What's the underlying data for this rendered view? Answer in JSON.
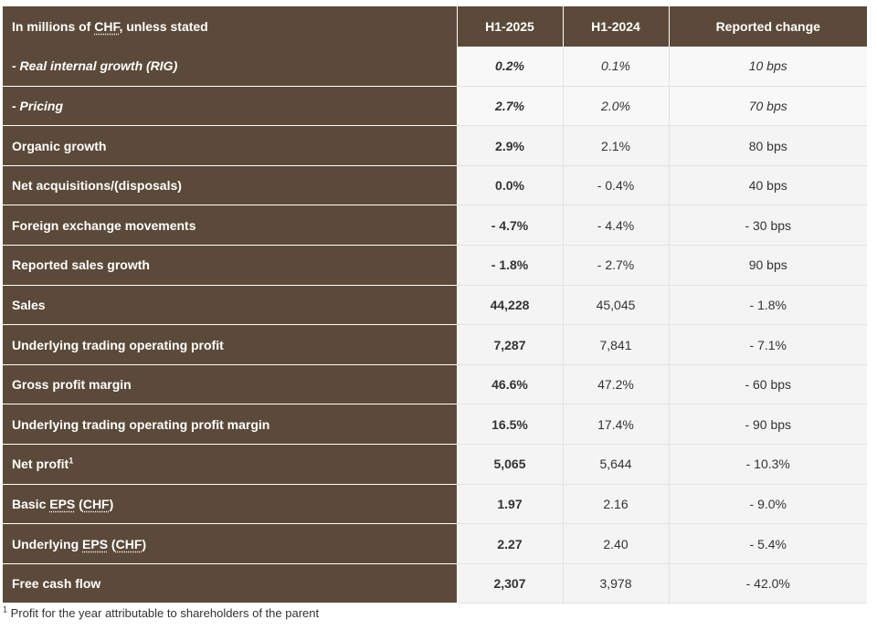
{
  "table": {
    "header": {
      "label_prefix": "In millions of ",
      "label_abbr": "CHF",
      "label_suffix": ", unless stated",
      "col1": "H1-2025",
      "col2": "H1-2024",
      "col3": "Reported change"
    },
    "rows": [
      {
        "label": "- Real internal growth (RIG)",
        "h1_2025": "0.2%",
        "h1_2024": "0.1%",
        "change": "10 bps"
      },
      {
        "label": "- Pricing",
        "h1_2025": "2.7%",
        "h1_2024": "2.0%",
        "change": "70 bps"
      },
      {
        "label": "Organic growth",
        "h1_2025": "2.9%",
        "h1_2024": "2.1%",
        "change": "80 bps"
      },
      {
        "label": "Net acquisitions/(disposals)",
        "h1_2025": "0.0%",
        "h1_2024": "- 0.4%",
        "change": "40 bps"
      },
      {
        "label": "Foreign exchange movements",
        "h1_2025": "- 4.7%",
        "h1_2024": "- 4.4%",
        "change": "- 30 bps"
      },
      {
        "label": "Reported sales growth",
        "h1_2025": "- 1.8%",
        "h1_2024": "- 2.7%",
        "change": "90 bps"
      },
      {
        "label": "Sales",
        "h1_2025": "44,228",
        "h1_2024": "45,045",
        "change": "- 1.8%"
      },
      {
        "label": "Underlying trading operating profit",
        "h1_2025": "7,287",
        "h1_2024": "7,841",
        "change": "- 7.1%"
      },
      {
        "label": "Gross profit margin",
        "h1_2025": "46.6%",
        "h1_2024": "47.2%",
        "change": "- 60 bps"
      },
      {
        "label": "Underlying trading operating profit margin",
        "h1_2025": "16.5%",
        "h1_2024": "17.4%",
        "change": "- 90 bps"
      },
      {
        "label": "Net profit",
        "label_sup": "1",
        "h1_2025": "5,065",
        "h1_2024": "5,644",
        "change": "- 10.3%"
      },
      {
        "label_prefix": "Basic ",
        "label_abbr1": "EPS",
        "label_mid": " (",
        "label_abbr2": "CHF",
        "label_suffix": ")",
        "h1_2025": "1.97",
        "h1_2024": "2.16",
        "change": "- 9.0%"
      },
      {
        "label_prefix": "Underlying ",
        "label_abbr1": "EPS",
        "label_mid": " (",
        "label_abbr2": "CHF",
        "label_suffix": ")",
        "h1_2025": "2.27",
        "h1_2024": "2.40",
        "change": "- 5.4%"
      },
      {
        "label": "Free cash flow",
        "h1_2025": "2,307",
        "h1_2024": "3,978",
        "change": "- 42.0%"
      }
    ]
  },
  "footnote": {
    "marker": "1",
    "text": " Profit for the year attributable to shareholders of the parent"
  },
  "colors": {
    "label_bg": "#5b4a39",
    "cell_bg": "#f4f4f4",
    "text": "#333333"
  }
}
